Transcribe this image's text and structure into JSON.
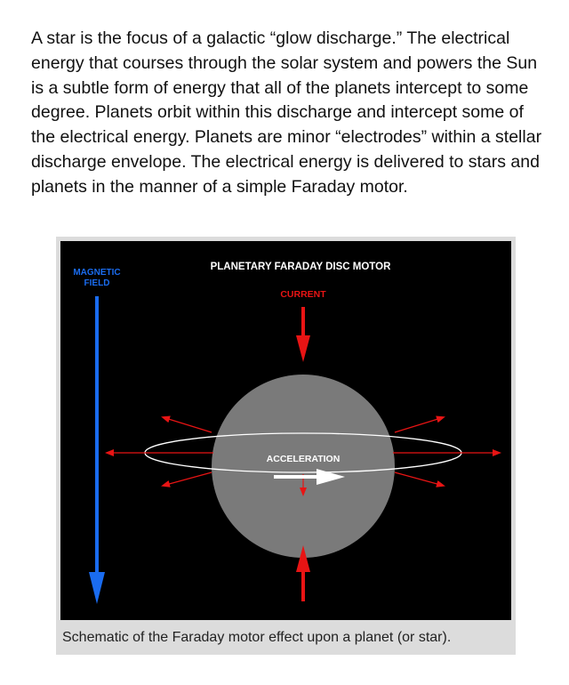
{
  "article": {
    "paragraph": "A star is the focus of a galactic “glow discharge.” The electrical energy that courses through the solar system and powers the Sun is a subtle form of energy that all of the planets intercept to some degree. Planets orbit within this discharge and intercept some of the electrical energy. Planets are minor “electrodes” within a stellar discharge envelope. The electrical energy is delivered to stars and planets in the manner of a simple Faraday motor."
  },
  "figure": {
    "title": "PLANETARY FARADAY DISC MOTOR",
    "magnetic_field_label_line1": "MAGNETIC",
    "magnetic_field_label_line2": "FIELD",
    "current_label": "CURRENT",
    "acceleration_label": "ACCELERATION",
    "caption": "Schematic of the Faraday motor effect upon a planet (or star).",
    "colors": {
      "background": "#000000",
      "planet": "#7a7a7a",
      "magnetic_field": "#1a6cf0",
      "current": "#e81414",
      "ring": "#ffffff",
      "frame": "#dcdcdc"
    }
  }
}
